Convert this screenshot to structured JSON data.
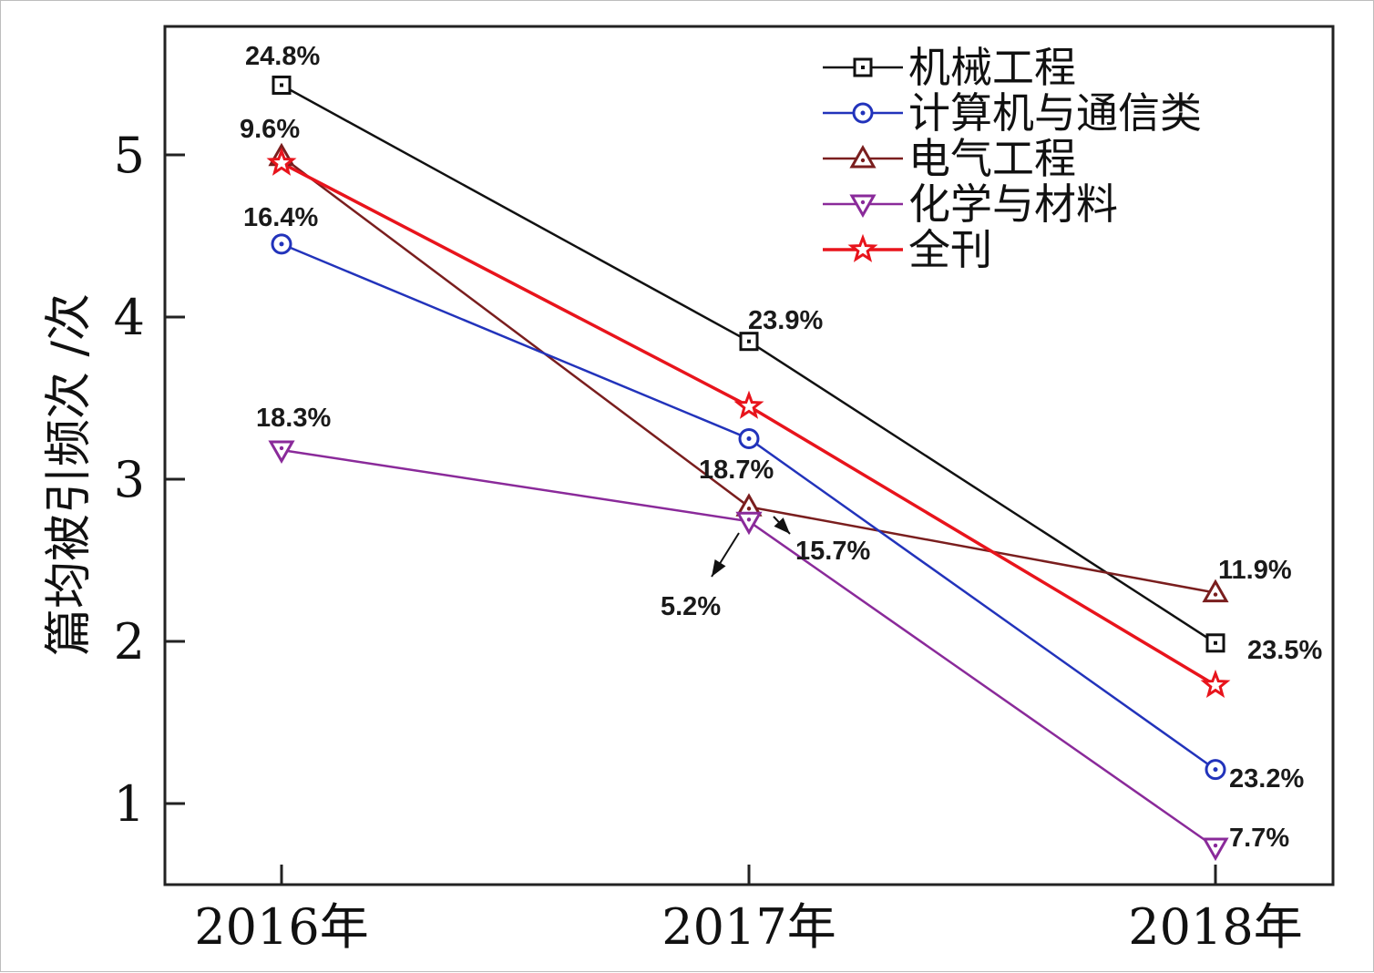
{
  "chart_data": {
    "type": "line",
    "categories": [
      "2016年",
      "2017年",
      "2018年"
    ],
    "ylabel": "篇均被引频次 /次",
    "ylim": [
      0.5,
      5.8
    ],
    "yticks": [
      1,
      2,
      3,
      4,
      5
    ],
    "grid": false,
    "legend_position": "top-right",
    "series": [
      {
        "name": "机械工程",
        "color": "#111111",
        "marker": "square",
        "values": [
          5.43,
          3.85,
          1.99
        ],
        "labels": [
          "24.8%",
          "23.9%",
          "23.5%"
        ]
      },
      {
        "name": "计算机与通信类",
        "color": "#2233bb",
        "marker": "circle",
        "values": [
          4.45,
          3.25,
          1.21
        ],
        "labels": [
          "16.4%",
          "",
          "23.2%"
        ]
      },
      {
        "name": "电气工程",
        "color": "#7a1e1e",
        "marker": "triangle-up",
        "values": [
          4.99,
          2.83,
          2.3
        ],
        "labels": [
          "9.6%",
          "15.7%",
          "11.9%"
        ]
      },
      {
        "name": "化学与材料",
        "color": "#8a2a9a",
        "marker": "triangle-down",
        "values": [
          3.18,
          2.74,
          0.73
        ],
        "labels": [
          "18.3%",
          "5.2%",
          "7.7%"
        ]
      },
      {
        "name": "全刊",
        "color": "#e8141c",
        "marker": "star",
        "values": [
          4.95,
          3.45,
          1.73
        ],
        "labels": [
          "",
          "18.7%",
          ""
        ]
      }
    ]
  }
}
